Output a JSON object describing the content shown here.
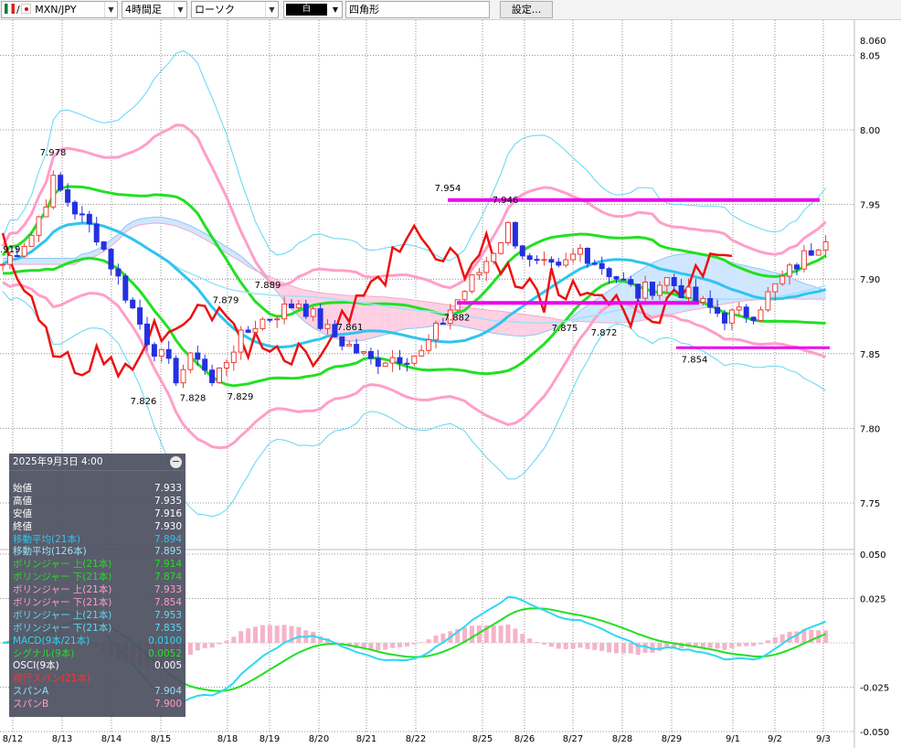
{
  "toolbar": {
    "pair_label": "MXN/JPY",
    "flag_sep": "/",
    "timeframe": "4時間足",
    "chart_style": "ローソク",
    "color_swatch": "白",
    "draw_tool_value": "四角形",
    "settings_label": "設定..."
  },
  "info_panel": {
    "datetime": "2025年9月3日  4:00",
    "collapse_symbol": "−",
    "rows": [
      {
        "label": "始値",
        "value": "7.933",
        "color": "#ffffff"
      },
      {
        "label": "高値",
        "value": "7.935",
        "color": "#ffffff"
      },
      {
        "label": "安値",
        "value": "7.916",
        "color": "#ffffff"
      },
      {
        "label": "終値",
        "value": "7.930",
        "color": "#ffffff"
      },
      {
        "label": "移動平均(21本)",
        "value": "7.894",
        "color": "#2fc4f0"
      },
      {
        "label": "移動平均(126本)",
        "value": "7.895",
        "color": "#9ee2f8"
      },
      {
        "label": "ボリンジャー 上(21本)",
        "value": "7.914",
        "color": "#22e022"
      },
      {
        "label": "ボリンジャー 下(21本)",
        "value": "7.874",
        "color": "#22e022"
      },
      {
        "label": "ボリンジャー 上(21本)",
        "value": "7.933",
        "color": "#ff9ec8"
      },
      {
        "label": "ボリンジャー 下(21本)",
        "value": "7.854",
        "color": "#ff9ec8"
      },
      {
        "label": "ボリンジャー 上(21本)",
        "value": "7.953",
        "color": "#62d6f4"
      },
      {
        "label": "ボリンジャー 下(21本)",
        "value": "7.835",
        "color": "#62d6f4"
      },
      {
        "label": "MACD(9本/21本)",
        "value": "0.0100",
        "color": "#2fd8f0"
      },
      {
        "label": "シグナル(9本)",
        "value": "0.0052",
        "color": "#22e022"
      },
      {
        "label": "OSCI(9本)",
        "value": "0.005",
        "color": "#ffffff"
      },
      {
        "label": "遅行スパン(21本)",
        "value": "",
        "color": "#ff3030"
      },
      {
        "label": "スパンA",
        "value": "7.904",
        "color": "#9fd8ff"
      },
      {
        "label": "スパンB",
        "value": "7.900",
        "color": "#ff9ec8"
      }
    ]
  },
  "chart_data": [
    {
      "type": "candlestick",
      "yaxis": {
        "min": 7.77,
        "max": 8.06,
        "ticks": [
          "8.060",
          "8.05",
          "8.00",
          "7.95",
          "7.90",
          "7.85",
          "7.80",
          "7.75"
        ],
        "tick_values": [
          8.06,
          8.05,
          8.0,
          7.95,
          7.9,
          7.85,
          7.8,
          7.75
        ]
      },
      "xaxis": {
        "ticks": [
          "8/12",
          "8/13",
          "8/14",
          "8/15",
          "8/18",
          "8/19",
          "8/20",
          "8/21",
          "8/22",
          "8/25",
          "8/26",
          "8/27",
          "8/28",
          "8/29",
          "9/1",
          "9/2",
          "9/3"
        ]
      },
      "annotations": [
        {
          "text": "7.978",
          "value": 7.978
        },
        {
          "text": "7.919",
          "value": 7.919
        },
        {
          "text": "7.826",
          "value": 7.826
        },
        {
          "text": "7.828",
          "value": 7.828
        },
        {
          "text": "7.879",
          "value": 7.879
        },
        {
          "text": "7.829",
          "value": 7.829
        },
        {
          "text": "7.889",
          "value": 7.889
        },
        {
          "text": "7.861",
          "value": 7.861
        },
        {
          "text": "7.954",
          "value": 7.954
        },
        {
          "text": "7.946",
          "value": 7.946
        },
        {
          "text": "7.882",
          "value": 7.882
        },
        {
          "text": "7.875",
          "value": 7.875
        },
        {
          "text": "7.872",
          "value": 7.872
        },
        {
          "text": "7.854",
          "value": 7.854
        }
      ],
      "horizontal_lines": [
        7.953,
        7.884,
        7.854
      ],
      "grid": true,
      "colors": {
        "up": "#e8403a",
        "down": "#2430e0",
        "ma21": "#2fc4f0",
        "ma126": "#9ee2f8",
        "bb1": "#22e022",
        "bb2": "#ff9ec8",
        "bb3": "#62d6f4",
        "lagging": "#ee1010",
        "cloud_a": "#cfe6ff",
        "cloud_b": "#ffd0e4",
        "hline": "#ee00ee"
      }
    },
    {
      "type": "line",
      "yaxis": {
        "min": -0.05,
        "max": 0.05,
        "ticks": [
          "0.050",
          "0.025",
          "-0.025",
          "-0.050"
        ],
        "tick_values": [
          0.05,
          0.025,
          -0.025,
          -0.05
        ]
      },
      "series": [
        {
          "name": "MACD(9本/21本)"
        },
        {
          "name": "シグナル(9本)"
        },
        {
          "name": "OSCI(9本)"
        }
      ]
    }
  ]
}
